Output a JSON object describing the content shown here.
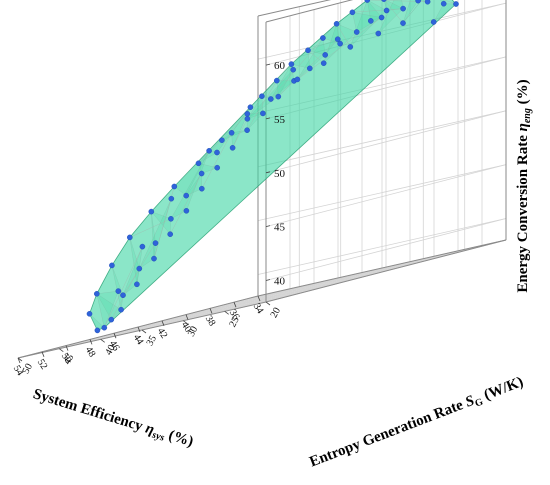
{
  "chart_data": {
    "type": "scatter",
    "variant": "3d-scatter-with-surface",
    "axes": {
      "x": {
        "label": "System Efficiency",
        "symbol": "η",
        "sub": "sys",
        "unit": "(%)",
        "ticks": [
          "34",
          "36",
          "38",
          "40",
          "42",
          "44",
          "46",
          "48",
          "50",
          "52",
          "54"
        ],
        "range": [
          34,
          54
        ]
      },
      "y": {
        "label": "Entropy Generation Rate",
        "symbol": "S",
        "sub": "G",
        "unit": "(W/K)",
        "ticks": [
          "20",
          "25",
          "30",
          "35",
          "40",
          "45",
          "50"
        ],
        "range": [
          20,
          50
        ]
      },
      "z": {
        "label": "Energy Conversion Rate",
        "symbol": "η",
        "sub": "eng",
        "unit": "(%)",
        "ticks": [
          "40",
          "45",
          "50",
          "55",
          "60"
        ],
        "range": [
          38,
          64
        ]
      }
    },
    "grid": true,
    "colors": {
      "points": "#2f63d9",
      "surface": "#3dd6a3",
      "surface_edge": "#1f9c6e",
      "grid": "#d4d4d4",
      "frame": "#8a8a8a"
    },
    "series": [
      {
        "points": [
          [
            35.0,
            24.6,
            61.0
          ],
          [
            35.4,
            25.5,
            61.3
          ],
          [
            35.8,
            24.8,
            62.4
          ],
          [
            36.1,
            26.1,
            62.9
          ],
          [
            36.6,
            25.3,
            63.0
          ],
          [
            37.0,
            26.8,
            63.3
          ],
          [
            37.4,
            25.7,
            62.2
          ],
          [
            37.9,
            27.2,
            63.8
          ],
          [
            38.3,
            26.2,
            61.8
          ],
          [
            38.8,
            27.8,
            63.1
          ],
          [
            39.2,
            26.9,
            62.0
          ],
          [
            39.7,
            28.5,
            63.4
          ],
          [
            40.1,
            27.5,
            61.4
          ],
          [
            40.6,
            29.0,
            62.6
          ],
          [
            41.0,
            27.9,
            60.7
          ],
          [
            41.5,
            29.6,
            61.9
          ],
          [
            41.9,
            28.6,
            60.0
          ],
          [
            42.3,
            30.1,
            60.9
          ],
          [
            42.8,
            29.1,
            59.3
          ],
          [
            43.2,
            30.6,
            60.1
          ],
          [
            43.6,
            29.8,
            58.4
          ],
          [
            44.1,
            31.3,
            59.2
          ],
          [
            44.5,
            30.4,
            57.6
          ],
          [
            44.9,
            31.9,
            58.0
          ],
          [
            45.4,
            31.0,
            56.5
          ],
          [
            45.8,
            32.4,
            56.9
          ],
          [
            46.2,
            31.7,
            55.3
          ],
          [
            46.6,
            33.0,
            55.6
          ],
          [
            47.1,
            32.3,
            54.1
          ],
          [
            47.5,
            33.6,
            54.2
          ],
          [
            47.9,
            32.9,
            52.8
          ],
          [
            48.3,
            34.2,
            52.7
          ],
          [
            48.7,
            33.6,
            51.3
          ],
          [
            49.1,
            34.9,
            51.1
          ],
          [
            49.5,
            34.3,
            49.7
          ],
          [
            49.9,
            35.6,
            49.4
          ],
          [
            50.3,
            35.0,
            48.0
          ],
          [
            50.7,
            36.3,
            47.6
          ],
          [
            51.1,
            35.8,
            46.2
          ],
          [
            51.5,
            37.0,
            45.7
          ],
          [
            51.9,
            36.6,
            44.3
          ],
          [
            52.3,
            37.8,
            43.7
          ],
          [
            52.7,
            37.5,
            42.3
          ],
          [
            53.1,
            38.6,
            41.6
          ],
          [
            53.4,
            38.4,
            40.3
          ],
          [
            53.6,
            39.3,
            39.6
          ],
          [
            53.9,
            39.7,
            39.0
          ],
          [
            54.0,
            40.4,
            38.9
          ],
          [
            35.2,
            27.0,
            59.8
          ],
          [
            36.8,
            28.4,
            60.4
          ],
          [
            38.1,
            29.5,
            60.0
          ],
          [
            39.6,
            30.7,
            59.4
          ],
          [
            41.2,
            31.6,
            58.5
          ],
          [
            42.7,
            32.6,
            57.6
          ],
          [
            44.3,
            33.5,
            56.4
          ],
          [
            45.7,
            34.3,
            55.1
          ],
          [
            47.2,
            35.2,
            53.7
          ],
          [
            48.6,
            36.0,
            52.1
          ],
          [
            50.0,
            36.9,
            50.5
          ],
          [
            51.3,
            37.8,
            48.7
          ],
          [
            52.4,
            38.8,
            46.8
          ],
          [
            53.2,
            39.8,
            44.6
          ],
          [
            53.7,
            40.9,
            42.3
          ],
          [
            53.9,
            41.5,
            40.6
          ],
          [
            37.5,
            24.4,
            61.9
          ],
          [
            40.3,
            25.9,
            61.5
          ],
          [
            43.0,
            27.3,
            60.5
          ],
          [
            45.6,
            28.9,
            58.7
          ],
          [
            48.0,
            30.6,
            56.2
          ],
          [
            50.2,
            32.4,
            53.1
          ],
          [
            51.9,
            34.5,
            49.5
          ],
          [
            53.0,
            36.4,
            45.7
          ],
          [
            53.7,
            38.3,
            42.1
          ]
        ]
      }
    ]
  }
}
